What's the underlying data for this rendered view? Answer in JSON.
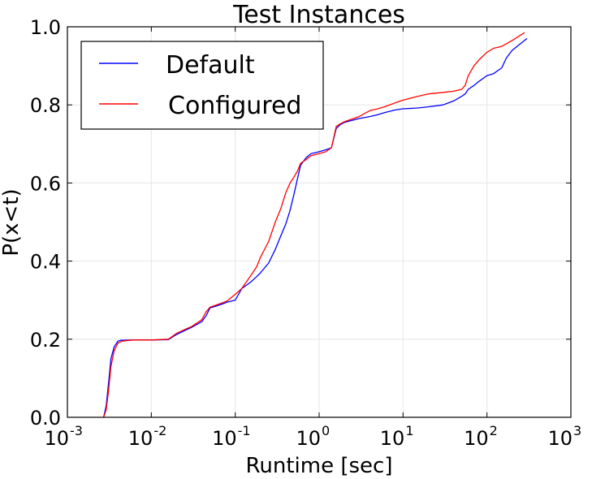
{
  "chart_data": {
    "type": "line",
    "title": "Test Instances",
    "xlabel": "Runtime [sec]",
    "ylabel": "P(x<t)",
    "x_scale": "log",
    "xlim": [
      0.001,
      1000
    ],
    "ylim": [
      0,
      1.0
    ],
    "grid": true,
    "legend_placement": "top-left",
    "x_ticks": [
      {
        "base": "10",
        "exp": "-3",
        "value": 0.001
      },
      {
        "base": "10",
        "exp": "-2",
        "value": 0.01
      },
      {
        "base": "10",
        "exp": "-1",
        "value": 0.1
      },
      {
        "base": "10",
        "exp": "0",
        "value": 1
      },
      {
        "base": "10",
        "exp": "1",
        "value": 10
      },
      {
        "base": "10",
        "exp": "2",
        "value": 100
      },
      {
        "base": "10",
        "exp": "3",
        "value": 1000
      }
    ],
    "y_ticks": [
      {
        "label": "0.0",
        "value": 0.0
      },
      {
        "label": "0.2",
        "value": 0.2
      },
      {
        "label": "0.4",
        "value": 0.4
      },
      {
        "label": "0.6",
        "value": 0.6
      },
      {
        "label": "0.8",
        "value": 0.8
      },
      {
        "label": "1.0",
        "value": 1.0
      }
    ],
    "series": [
      {
        "name": "Default",
        "color": "#0000ff",
        "x": [
          0.0027,
          0.0029,
          0.0031,
          0.0033,
          0.0036,
          0.004,
          0.0043,
          0.006,
          0.01,
          0.016,
          0.02,
          0.025,
          0.03,
          0.04,
          0.045,
          0.05,
          0.06,
          0.07,
          0.08,
          0.1,
          0.12,
          0.15,
          0.18,
          0.2,
          0.25,
          0.3,
          0.35,
          0.4,
          0.45,
          0.5,
          0.55,
          0.6,
          0.7,
          0.8,
          1.0,
          1.2,
          1.4,
          1.6,
          1.8,
          2.0,
          3.0,
          4.0,
          5.0,
          6.0,
          8.0,
          10,
          15,
          20,
          30,
          40,
          50,
          55,
          60,
          70,
          80,
          100,
          120,
          150,
          170,
          200,
          300
        ],
        "y": [
          0.0,
          0.03,
          0.09,
          0.15,
          0.18,
          0.195,
          0.197,
          0.198,
          0.198,
          0.199,
          0.212,
          0.222,
          0.23,
          0.245,
          0.26,
          0.28,
          0.285,
          0.29,
          0.295,
          0.3,
          0.33,
          0.345,
          0.36,
          0.37,
          0.395,
          0.43,
          0.465,
          0.495,
          0.53,
          0.57,
          0.61,
          0.645,
          0.665,
          0.675,
          0.68,
          0.685,
          0.69,
          0.74,
          0.75,
          0.755,
          0.765,
          0.77,
          0.775,
          0.78,
          0.787,
          0.79,
          0.792,
          0.795,
          0.8,
          0.81,
          0.822,
          0.828,
          0.84,
          0.85,
          0.86,
          0.875,
          0.88,
          0.895,
          0.92,
          0.94,
          0.97
        ]
      },
      {
        "name": "Configured",
        "color": "#ff0000",
        "x": [
          0.0027,
          0.0029,
          0.0031,
          0.0033,
          0.0036,
          0.004,
          0.0045,
          0.006,
          0.01,
          0.016,
          0.02,
          0.025,
          0.03,
          0.04,
          0.045,
          0.05,
          0.06,
          0.07,
          0.08,
          0.1,
          0.12,
          0.15,
          0.18,
          0.2,
          0.25,
          0.3,
          0.35,
          0.4,
          0.45,
          0.5,
          0.55,
          0.6,
          0.7,
          0.8,
          1.0,
          1.2,
          1.4,
          1.6,
          1.8,
          2.0,
          3.0,
          4.0,
          5.0,
          6.0,
          8.0,
          10,
          15,
          20,
          30,
          40,
          50,
          55,
          60,
          70,
          80,
          100,
          120,
          150,
          200,
          280
        ],
        "y": [
          0.0,
          0.02,
          0.07,
          0.13,
          0.17,
          0.19,
          0.195,
          0.198,
          0.198,
          0.2,
          0.215,
          0.225,
          0.232,
          0.25,
          0.27,
          0.282,
          0.288,
          0.293,
          0.298,
          0.315,
          0.33,
          0.36,
          0.385,
          0.41,
          0.45,
          0.5,
          0.535,
          0.575,
          0.6,
          0.615,
          0.63,
          0.65,
          0.66,
          0.67,
          0.675,
          0.68,
          0.69,
          0.745,
          0.752,
          0.757,
          0.77,
          0.785,
          0.79,
          0.795,
          0.805,
          0.812,
          0.822,
          0.828,
          0.832,
          0.835,
          0.84,
          0.85,
          0.875,
          0.9,
          0.915,
          0.935,
          0.945,
          0.95,
          0.965,
          0.985
        ]
      }
    ]
  }
}
